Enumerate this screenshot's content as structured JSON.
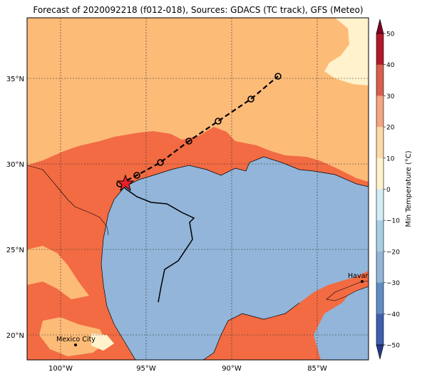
{
  "title": "Forecast of 2020092218 (f012-018), Sources: GDACS (TC track), GFS (Meteo)",
  "lon_labels": [
    "100°W",
    "95°W",
    "90°W",
    "85°W"
  ],
  "lat_labels": [
    "35°N",
    "30°N",
    "25°N",
    "20°N"
  ],
  "colorbar": {
    "label": "Min Temperature (°C)",
    "ticks": [
      "50",
      "40",
      "30",
      "20",
      "10",
      "0",
      "−10",
      "−20",
      "−30",
      "−40",
      "−50"
    ],
    "colors": [
      "#7f0022",
      "#b2182b",
      "#d6604d",
      "#f4a582",
      "#fdd9a8",
      "#fff2cc",
      "#d4ecf5",
      "#a7cfe4",
      "#92b5d9",
      "#5f8dc4",
      "#3d5fae",
      "#263a8f"
    ]
  },
  "cities": [
    {
      "name": "Havana"
    },
    {
      "name": "Mexico City"
    }
  ],
  "legend_colors": {
    "land_warm": "#fdbb78",
    "land_hot": "#f26b43",
    "ocean": "#92b5d9",
    "cool": "#fff2cc"
  }
}
